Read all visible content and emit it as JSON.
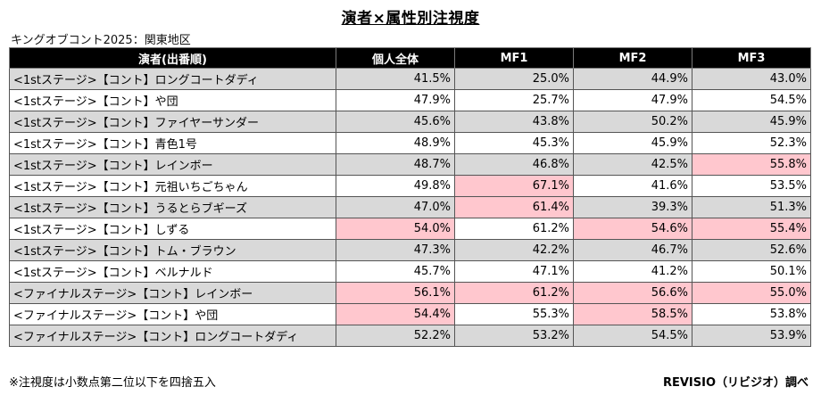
{
  "title": "演者×属性別注視度",
  "subtitle": "キングオブコント2025：関東地区",
  "table": {
    "headers": [
      "演者(出番順)",
      "個人全体",
      "MF1",
      "MF2",
      "MF3"
    ],
    "rows": [
      {
        "name": "<1stステージ>【コント】ロングコートダディ",
        "values": [
          "41.5%",
          "25.0%",
          "44.9%",
          "43.0%"
        ],
        "highlight": [
          false,
          false,
          false,
          false
        ]
      },
      {
        "name": "<1stステージ>【コント】や団",
        "values": [
          "47.9%",
          "25.7%",
          "47.9%",
          "54.5%"
        ],
        "highlight": [
          false,
          false,
          false,
          false
        ]
      },
      {
        "name": "<1stステージ>【コント】ファイヤーサンダー",
        "values": [
          "45.6%",
          "43.8%",
          "50.2%",
          "45.9%"
        ],
        "highlight": [
          false,
          false,
          false,
          false
        ]
      },
      {
        "name": "<1stステージ>【コント】青色1号",
        "values": [
          "48.9%",
          "45.3%",
          "45.9%",
          "52.3%"
        ],
        "highlight": [
          false,
          false,
          false,
          false
        ]
      },
      {
        "name": "<1stステージ>【コント】レインボー",
        "values": [
          "48.7%",
          "46.8%",
          "42.5%",
          "55.8%"
        ],
        "highlight": [
          false,
          false,
          false,
          true
        ]
      },
      {
        "name": "<1stステージ>【コント】元祖いちごちゃん",
        "values": [
          "49.8%",
          "67.1%",
          "41.6%",
          "53.5%"
        ],
        "highlight": [
          false,
          true,
          false,
          false
        ]
      },
      {
        "name": "<1stステージ>【コント】うるとらブギーズ",
        "values": [
          "47.0%",
          "61.4%",
          "39.3%",
          "51.3%"
        ],
        "highlight": [
          false,
          true,
          false,
          false
        ]
      },
      {
        "name": "<1stステージ>【コント】しずる",
        "values": [
          "54.0%",
          "61.2%",
          "54.6%",
          "55.4%"
        ],
        "highlight": [
          true,
          false,
          true,
          true
        ]
      },
      {
        "name": "<1stステージ>【コント】トム・ブラウン",
        "values": [
          "47.3%",
          "42.2%",
          "46.7%",
          "52.6%"
        ],
        "highlight": [
          false,
          false,
          false,
          false
        ]
      },
      {
        "name": "<1stステージ>【コント】ベルナルド",
        "values": [
          "45.7%",
          "47.1%",
          "41.2%",
          "50.1%"
        ],
        "highlight": [
          false,
          false,
          false,
          false
        ]
      },
      {
        "name": "<ファイナルステージ>【コント】レインボー",
        "values": [
          "56.1%",
          "61.2%",
          "56.6%",
          "55.0%"
        ],
        "highlight": [
          true,
          true,
          true,
          true
        ]
      },
      {
        "name": "<ファイナルステージ>【コント】や団",
        "values": [
          "54.4%",
          "55.3%",
          "58.5%",
          "53.8%"
        ],
        "highlight": [
          true,
          false,
          true,
          false
        ]
      },
      {
        "name": "<ファイナルステージ>【コント】ロングコートダディ",
        "values": [
          "52.2%",
          "53.2%",
          "54.5%",
          "53.9%"
        ],
        "highlight": [
          false,
          false,
          false,
          false
        ]
      }
    ]
  },
  "footnote": "※注視度は小数点第二位以下を四捨五入",
  "credit": "REVISIO（リビジオ）調べ",
  "colors": {
    "header_bg": "#000000",
    "header_text": "#ffffff",
    "stripe_bg": "#d9d9d9",
    "highlight_bg": "#ffc7ce"
  }
}
